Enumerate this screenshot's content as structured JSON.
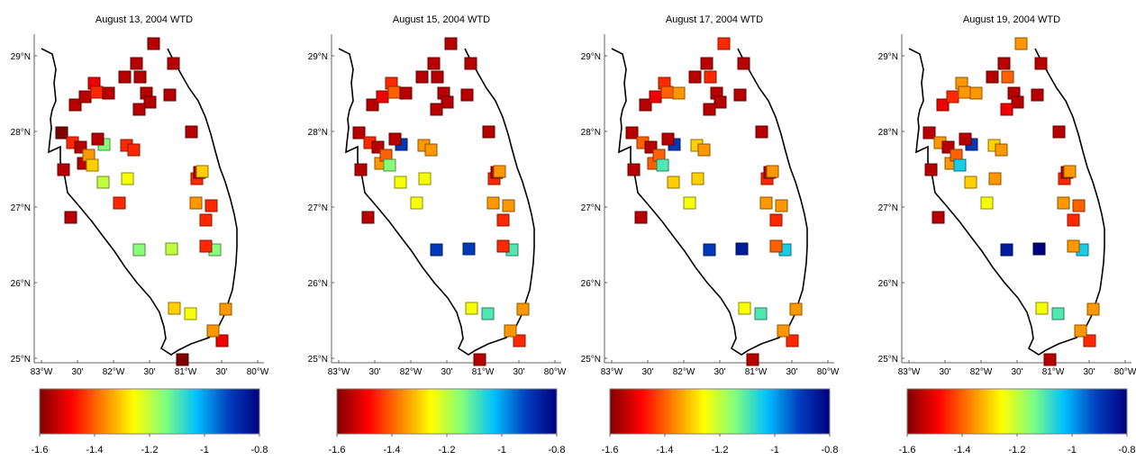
{
  "colors": {
    "gradient": [
      "#7f0000",
      "#ff0000",
      "#ff8000",
      "#ffff00",
      "#80ff80",
      "#00c0ff",
      "#0040c0",
      "#00007f"
    ],
    "coast": "#000000",
    "axis": "#606060"
  },
  "axis_labels": {
    "lat": [
      "29°N",
      "28°N",
      "27°N",
      "26°N",
      "25°N"
    ],
    "lon": [
      "83°W",
      "30'",
      "82°W",
      "30'",
      "81°W",
      "30'",
      "80°W"
    ]
  },
  "colorbar_labels": [
    "-1.6",
    "-1.4",
    "-1.2",
    "-1",
    "-0.8"
  ],
  "panels": [
    {
      "title": "August 13, 2004 WTD",
      "values": [
        -1.55,
        -1.55,
        -1.5,
        -1.45,
        -1.55,
        -1.55,
        -1.55,
        -1.55,
        -1.55,
        -1.55,
        -1.55,
        -1.55,
        -1.6,
        -1.45,
        -1.55,
        -1.55,
        -1.35,
        -1.15,
        -1.2,
        -1.45,
        -1.45,
        -1.25,
        -1.3,
        -1.45,
        -1.55,
        -1.55,
        -1.55,
        -1.55,
        -1.55,
        -1.45,
        -1.35,
        -1.55,
        -1.3,
        -1.45,
        -1.15,
        -1.45,
        -1.15,
        -1.2,
        -1.45,
        -1.6,
        -1.3,
        -1.25,
        -1.35,
        -1.5,
        -1.35,
        -1.55
      ]
    },
    {
      "title": "August 15, 2004 WTD",
      "values": [
        -1.55,
        -1.5,
        -1.45,
        -1.4,
        -1.55,
        -1.55,
        -1.55,
        -1.55,
        -1.55,
        -1.55,
        -1.55,
        -1.55,
        -1.55,
        -1.45,
        -1.55,
        -1.35,
        -1.4,
        -0.9,
        -1.25,
        -1.35,
        -1.35,
        -1.25,
        -1.15,
        -1.25,
        -1.55,
        -1.55,
        -1.55,
        -1.55,
        -1.55,
        -1.45,
        -1.35,
        -1.55,
        -1.35,
        -1.35,
        -1.1,
        -1.45,
        -0.9,
        -0.9,
        -1.45,
        -1.55,
        -1.25,
        -1.1,
        -1.35,
        -1.45,
        -1.35,
        -1.55
      ]
    },
    {
      "title": "August 17, 2004 WTD",
      "values": [
        -1.55,
        -1.5,
        -1.45,
        -1.4,
        -1.55,
        -1.55,
        -1.45,
        -1.45,
        -1.55,
        -1.55,
        -1.35,
        -1.55,
        -1.55,
        -1.4,
        -1.55,
        -1.4,
        -1.4,
        -0.9,
        -1.3,
        -1.3,
        -1.35,
        -1.3,
        -1.1,
        -1.25,
        -1.55,
        -1.55,
        -1.55,
        -1.55,
        -1.55,
        -1.45,
        -1.35,
        -1.55,
        -1.35,
        -1.35,
        -1.05,
        -1.45,
        -0.9,
        -0.85,
        -1.4,
        -1.55,
        -1.25,
        -1.1,
        -1.35,
        -1.45,
        -1.35,
        -1.55
      ]
    },
    {
      "title": "August 19, 2004 WTD",
      "values": [
        -1.5,
        -1.45,
        -1.35,
        -1.35,
        -1.55,
        -1.55,
        -1.4,
        -1.35,
        -1.55,
        -1.55,
        -1.35,
        -1.5,
        -1.55,
        -1.35,
        -1.55,
        -1.35,
        -1.4,
        -0.9,
        -1.3,
        -1.3,
        -1.35,
        -1.35,
        -1.05,
        -1.25,
        -1.55,
        -1.55,
        -1.55,
        -1.55,
        -1.55,
        -1.45,
        -1.35,
        -1.55,
        -1.35,
        -1.4,
        -1.05,
        -1.45,
        -0.85,
        -0.8,
        -1.35,
        -1.55,
        -1.25,
        -1.1,
        -1.35,
        -1.45,
        -1.35,
        -1.55
      ]
    }
  ]
}
